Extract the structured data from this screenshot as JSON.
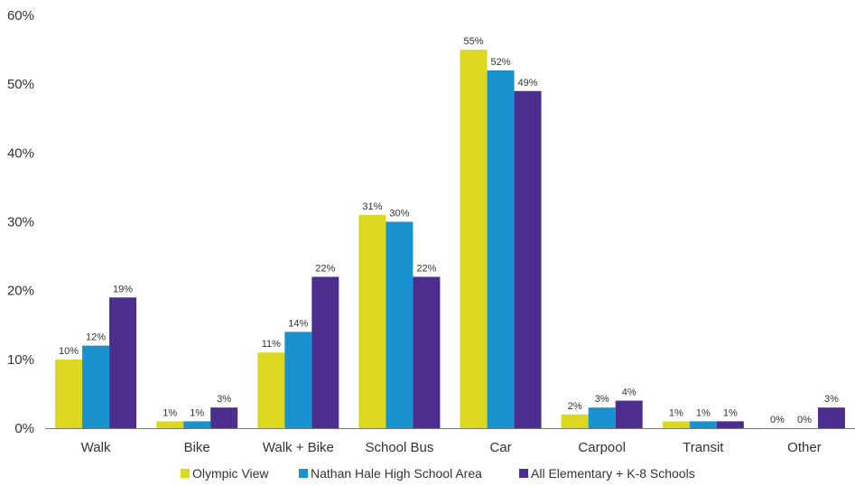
{
  "chart_data": {
    "type": "bar",
    "title": "",
    "xlabel": "",
    "ylabel": "",
    "ylim": [
      0,
      60
    ],
    "yticks": [
      0,
      10,
      20,
      30,
      40,
      50,
      60
    ],
    "ytick_labels": [
      "0%",
      "10%",
      "20%",
      "30%",
      "40%",
      "50%",
      "60%"
    ],
    "grid": false,
    "legend_position": "bottom",
    "categories": [
      "Walk",
      "Bike",
      "Walk + Bike",
      "School Bus",
      "Car",
      "Carpool",
      "Transit",
      "Other"
    ],
    "series": [
      {
        "name": "Olympic View",
        "color": "#DCD71F",
        "values": [
          10,
          1,
          11,
          31,
          55,
          2,
          1,
          0
        ],
        "labels": [
          "10%",
          "1%",
          "11%",
          "31%",
          "55%",
          "2%",
          "1%",
          "0%"
        ]
      },
      {
        "name": "Nathan Hale High School Area",
        "color": "#1B92D0",
        "values": [
          12,
          1,
          14,
          30,
          52,
          3,
          1,
          0
        ],
        "labels": [
          "12%",
          "1%",
          "14%",
          "30%",
          "52%",
          "3%",
          "1%",
          "0%"
        ]
      },
      {
        "name": "All Elementary + K-8 Schools",
        "color": "#4C2E8E",
        "values": [
          19,
          3,
          22,
          22,
          49,
          4,
          1,
          3
        ],
        "labels": [
          "19%",
          "3%",
          "22%",
          "22%",
          "49%",
          "4%",
          "1%",
          "3%"
        ]
      }
    ]
  }
}
